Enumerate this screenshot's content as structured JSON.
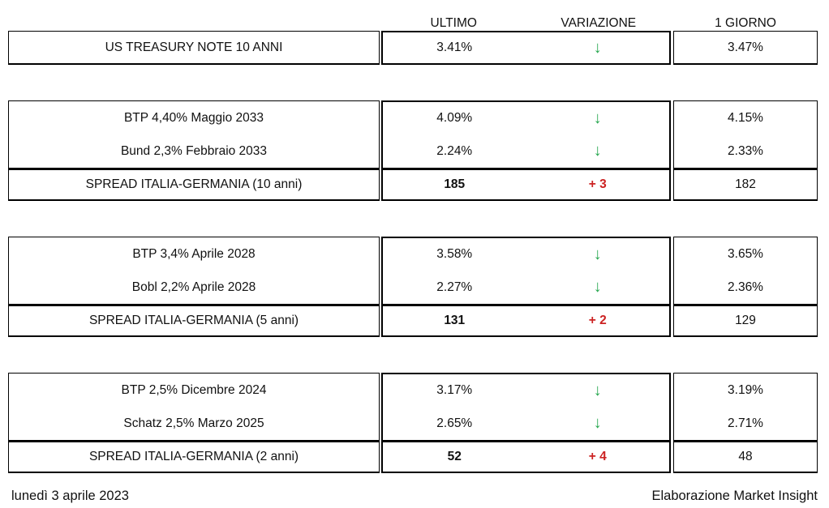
{
  "colors": {
    "green": "#28A750",
    "red": "#CC2222",
    "border": "#000000"
  },
  "icons": {
    "arrow_down": "↓"
  },
  "header": {
    "ultimo": "ULTIMO",
    "variazione": "VARIAZIONE",
    "giorno": "1 GIORNO"
  },
  "groups": [
    {
      "name": "US Treasury",
      "rows": [
        {
          "label": "US TREASURY NOTE 10 ANNI",
          "ultimo": "3.41%",
          "variazione": "down",
          "giorno": "3.47%"
        }
      ]
    },
    {
      "name": "10 anni",
      "rows": [
        {
          "label": "BTP 4,40% Maggio 2033",
          "ultimo": "4.09%",
          "variazione": "down",
          "giorno": "4.15%"
        },
        {
          "label": "Bund 2,3% Febbraio 2033",
          "ultimo": "2.24%",
          "variazione": "down",
          "giorno": "2.33%"
        }
      ],
      "spread": {
        "label": "SPREAD ITALIA-GERMANIA (10 anni)",
        "ultimo": "185",
        "variazione": "+ 3",
        "giorno": "182"
      }
    },
    {
      "name": "5 anni",
      "rows": [
        {
          "label": "BTP 3,4% Aprile 2028",
          "ultimo": "3.58%",
          "variazione": "down",
          "giorno": "3.65%"
        },
        {
          "label": "Bobl 2,2% Aprile 2028",
          "ultimo": "2.27%",
          "variazione": "down",
          "giorno": "2.36%"
        }
      ],
      "spread": {
        "label": "SPREAD ITALIA-GERMANIA (5 anni)",
        "ultimo": "131",
        "variazione": "+ 2",
        "giorno": "129"
      }
    },
    {
      "name": "2 anni",
      "rows": [
        {
          "label": "BTP 2,5% Dicembre 2024",
          "ultimo": "3.17%",
          "variazione": "down",
          "giorno": "3.19%"
        },
        {
          "label": "Schatz 2,5% Marzo 2025",
          "ultimo": "2.65%",
          "variazione": "down",
          "giorno": "2.71%"
        }
      ],
      "spread": {
        "label": "SPREAD ITALIA-GERMANIA (2 anni)",
        "ultimo": "52",
        "variazione": "+ 4",
        "giorno": "48"
      }
    }
  ],
  "footer": {
    "date": "lunedì 3 aprile 2023",
    "credit": "Elaborazione Market Insight"
  }
}
